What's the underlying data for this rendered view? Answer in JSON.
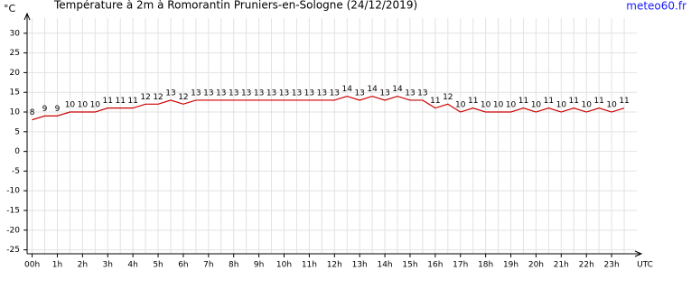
{
  "chart_data": {
    "type": "line",
    "title": "Température à 2m à Romorantin Pruniers-en-Sologne (24/12/2019)",
    "source": "meteo60.fr",
    "y_label": "°C",
    "x_label": "UTC",
    "x": [
      0,
      0.5,
      1,
      1.5,
      2,
      2.5,
      3,
      3.5,
      4,
      4.5,
      5,
      5.5,
      6,
      6.5,
      7,
      7.5,
      8,
      8.5,
      9,
      9.5,
      10,
      10.5,
      11,
      11.5,
      12,
      12.5,
      13,
      13.5,
      14,
      14.5,
      15,
      15.5,
      16,
      16.5,
      17,
      17.5,
      18,
      18.5,
      19,
      19.5,
      20,
      20.5,
      21,
      21.5,
      22,
      22.5,
      23,
      23.5
    ],
    "series": [
      {
        "name": "Température",
        "color": "#cc0000",
        "values": [
          8,
          9,
          9,
          10,
          10,
          10,
          11,
          11,
          11,
          12,
          12,
          13,
          12,
          13,
          13,
          13,
          13,
          13,
          13,
          13,
          13,
          13,
          13,
          13,
          13,
          14,
          13,
          14,
          13,
          14,
          13,
          13,
          11,
          12,
          10,
          11,
          10,
          10,
          10,
          11,
          10,
          11,
          10,
          11,
          10,
          11,
          10,
          11
        ]
      }
    ],
    "xlim": [
      -0.2,
      24
    ],
    "ylim": [
      -26,
      35
    ],
    "xticks": [
      {
        "value": 0,
        "label": "00h"
      },
      {
        "value": 1,
        "label": "1h"
      },
      {
        "value": 2,
        "label": "2h"
      },
      {
        "value": 3,
        "label": "3h"
      },
      {
        "value": 4,
        "label": "4h"
      },
      {
        "value": 5,
        "label": "5h"
      },
      {
        "value": 6,
        "label": "6h"
      },
      {
        "value": 7,
        "label": "7h"
      },
      {
        "value": 8,
        "label": "8h"
      },
      {
        "value": 9,
        "label": "9h"
      },
      {
        "value": 10,
        "label": "10h"
      },
      {
        "value": 11,
        "label": "11h"
      },
      {
        "value": 12,
        "label": "12h"
      },
      {
        "value": 13,
        "label": "13h"
      },
      {
        "value": 14,
        "label": "14h"
      },
      {
        "value": 15,
        "label": "15h"
      },
      {
        "value": 16,
        "label": "16h"
      },
      {
        "value": 17,
        "label": "17h"
      },
      {
        "value": 18,
        "label": "18h"
      },
      {
        "value": 19,
        "label": "19h"
      },
      {
        "value": 20,
        "label": "20h"
      },
      {
        "value": 21,
        "label": "21h"
      },
      {
        "value": 22,
        "label": "22h"
      },
      {
        "value": 23,
        "label": "23h"
      }
    ],
    "yticks": [
      30,
      25,
      20,
      15,
      10,
      5,
      0,
      -5,
      -10,
      -15,
      -20,
      -25
    ],
    "grid": true
  }
}
